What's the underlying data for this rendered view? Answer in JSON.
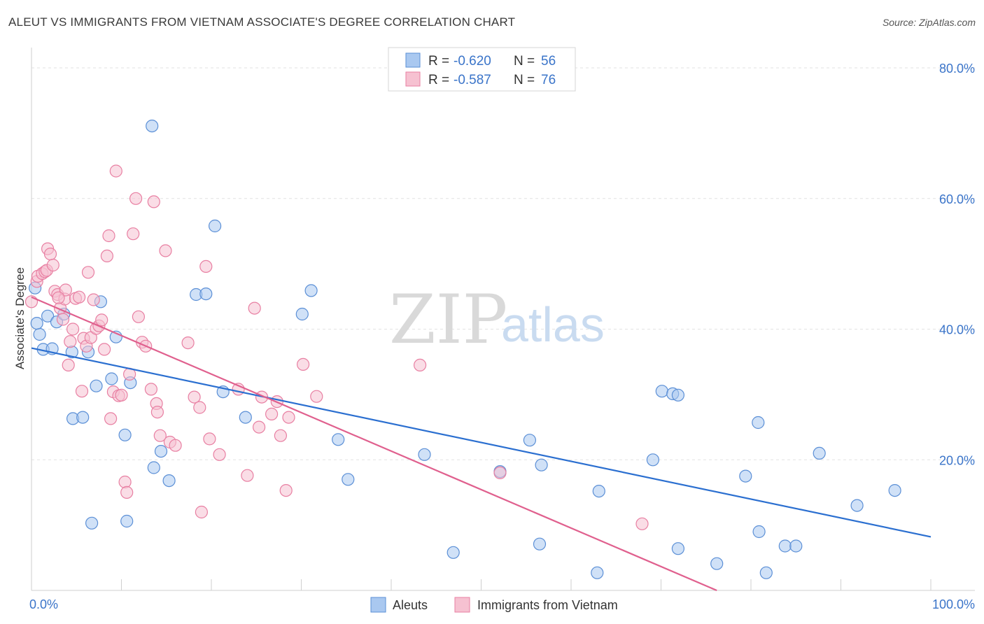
{
  "title": "ALEUT VS IMMIGRANTS FROM VIETNAM ASSOCIATE'S DEGREE CORRELATION CHART",
  "source": "Source: ZipAtlas.com",
  "watermark": {
    "zip": "ZIP",
    "atlas": "atlas"
  },
  "legend": {
    "r_label": "R =",
    "n_label": "N =",
    "rows": [
      {
        "r": "-0.620",
        "n": "56"
      },
      {
        "r": "-0.587",
        "n": "76"
      }
    ]
  },
  "bottom_legend": [
    "Aleuts",
    "Immigrants from Vietnam"
  ],
  "chart_data": {
    "type": "scatter",
    "ylabel": "Associate's Degree",
    "xlim": [
      0,
      100
    ],
    "ylim": [
      0,
      80
    ],
    "x_ticks": [
      "0.0%",
      "100.0%"
    ],
    "y_ticks": [
      {
        "v": 20,
        "label": "20.0%"
      },
      {
        "v": 40,
        "label": "40.0%"
      },
      {
        "v": 60,
        "label": "60.0%"
      },
      {
        "v": 80,
        "label": "80.0%"
      }
    ],
    "grid": true,
    "legend_position": "top-center",
    "colors": {
      "blue_fill": "#a9c8f0",
      "blue_stroke": "#5b8fd6",
      "blue_line": "#2b6fd0",
      "pink_fill": "#f6c1d1",
      "pink_stroke": "#e87fa2",
      "pink_line": "#e0608e",
      "tick_text": "#3a74c9"
    },
    "series": [
      {
        "name": "Aleuts",
        "color": "blue",
        "trend": {
          "x": [
            0,
            100
          ],
          "y": [
            37.1,
            8.2
          ]
        },
        "points": [
          [
            0.4,
            46.3
          ],
          [
            0.9,
            39.2
          ],
          [
            1.3,
            36.9
          ],
          [
            1.8,
            42.0
          ],
          [
            2.3,
            37.0
          ],
          [
            2.8,
            41.1
          ],
          [
            3.6,
            42.3
          ],
          [
            4.5,
            36.5
          ],
          [
            4.6,
            26.3
          ],
          [
            5.7,
            26.5
          ],
          [
            6.3,
            36.5
          ],
          [
            6.7,
            10.3
          ],
          [
            7.2,
            31.3
          ],
          [
            7.7,
            44.2
          ],
          [
            8.9,
            32.4
          ],
          [
            9.4,
            38.8
          ],
          [
            10.4,
            23.8
          ],
          [
            10.6,
            10.6
          ],
          [
            11.0,
            31.8
          ],
          [
            13.4,
            71.1
          ],
          [
            13.6,
            18.8
          ],
          [
            14.4,
            21.3
          ],
          [
            15.3,
            16.8
          ],
          [
            18.3,
            45.3
          ],
          [
            19.4,
            45.4
          ],
          [
            20.4,
            55.8
          ],
          [
            21.3,
            30.4
          ],
          [
            23.8,
            26.5
          ],
          [
            30.1,
            42.3
          ],
          [
            31.1,
            45.9
          ],
          [
            34.1,
            23.1
          ],
          [
            35.2,
            17.0
          ],
          [
            43.7,
            20.8
          ],
          [
            46.9,
            5.8
          ],
          [
            52.1,
            18.2
          ],
          [
            55.4,
            23.0
          ],
          [
            56.5,
            7.1
          ],
          [
            56.7,
            19.2
          ],
          [
            62.9,
            2.7
          ],
          [
            63.1,
            15.2
          ],
          [
            69.1,
            20.0
          ],
          [
            70.1,
            30.5
          ],
          [
            71.3,
            30.1
          ],
          [
            71.9,
            29.9
          ],
          [
            71.9,
            6.4
          ],
          [
            76.2,
            4.1
          ],
          [
            79.4,
            17.5
          ],
          [
            80.8,
            25.7
          ],
          [
            80.9,
            9.0
          ],
          [
            81.7,
            2.7
          ],
          [
            83.8,
            6.8
          ],
          [
            85.0,
            6.8
          ],
          [
            87.6,
            21.0
          ],
          [
            91.8,
            13.0
          ],
          [
            96.0,
            15.3
          ],
          [
            0.6,
            40.9
          ]
        ]
      },
      {
        "name": "Immigrants from Vietnam",
        "color": "pink",
        "trend": {
          "x": [
            0,
            76.2
          ],
          "y": [
            44.9,
            0
          ]
        },
        "points": [
          [
            0.0,
            44.2
          ],
          [
            0.6,
            47.3
          ],
          [
            0.7,
            48.1
          ],
          [
            1.2,
            48.5
          ],
          [
            1.5,
            48.8
          ],
          [
            1.7,
            49.0
          ],
          [
            1.8,
            52.3
          ],
          [
            2.1,
            51.5
          ],
          [
            2.4,
            49.8
          ],
          [
            2.6,
            45.8
          ],
          [
            2.9,
            45.3
          ],
          [
            3.2,
            43.2
          ],
          [
            3.5,
            41.5
          ],
          [
            3.7,
            44.6
          ],
          [
            3.8,
            46.0
          ],
          [
            4.1,
            34.5
          ],
          [
            4.3,
            38.1
          ],
          [
            4.6,
            40.0
          ],
          [
            4.9,
            44.7
          ],
          [
            5.3,
            44.9
          ],
          [
            5.6,
            30.5
          ],
          [
            5.8,
            38.6
          ],
          [
            6.1,
            37.4
          ],
          [
            6.3,
            48.7
          ],
          [
            6.6,
            38.7
          ],
          [
            6.9,
            44.5
          ],
          [
            7.2,
            40.1
          ],
          [
            7.5,
            40.5
          ],
          [
            7.8,
            41.4
          ],
          [
            8.1,
            36.9
          ],
          [
            8.4,
            51.2
          ],
          [
            8.6,
            54.3
          ],
          [
            8.8,
            26.3
          ],
          [
            9.1,
            30.4
          ],
          [
            9.4,
            64.2
          ],
          [
            9.7,
            29.8
          ],
          [
            10.0,
            29.9
          ],
          [
            10.4,
            16.6
          ],
          [
            10.6,
            15.0
          ],
          [
            10.9,
            33.1
          ],
          [
            11.3,
            54.6
          ],
          [
            11.6,
            60.0
          ],
          [
            11.9,
            41.9
          ],
          [
            12.3,
            38.0
          ],
          [
            12.7,
            37.4
          ],
          [
            13.3,
            30.8
          ],
          [
            13.6,
            59.5
          ],
          [
            13.9,
            28.6
          ],
          [
            14.0,
            27.3
          ],
          [
            14.3,
            23.7
          ],
          [
            14.9,
            52.0
          ],
          [
            15.4,
            22.7
          ],
          [
            16.0,
            22.2
          ],
          [
            17.4,
            37.9
          ],
          [
            18.1,
            29.6
          ],
          [
            18.7,
            28.0
          ],
          [
            18.9,
            12.0
          ],
          [
            19.4,
            49.6
          ],
          [
            19.8,
            23.2
          ],
          [
            20.9,
            20.8
          ],
          [
            23.0,
            30.8
          ],
          [
            24.0,
            17.6
          ],
          [
            24.8,
            43.2
          ],
          [
            25.3,
            25.0
          ],
          [
            25.6,
            29.6
          ],
          [
            26.7,
            27.0
          ],
          [
            27.3,
            28.9
          ],
          [
            27.7,
            23.7
          ],
          [
            28.3,
            15.3
          ],
          [
            28.6,
            26.5
          ],
          [
            30.2,
            34.6
          ],
          [
            31.7,
            29.7
          ],
          [
            43.2,
            34.5
          ],
          [
            52.1,
            18.0
          ],
          [
            67.9,
            10.2
          ],
          [
            3.0,
            44.8
          ]
        ]
      }
    ]
  }
}
